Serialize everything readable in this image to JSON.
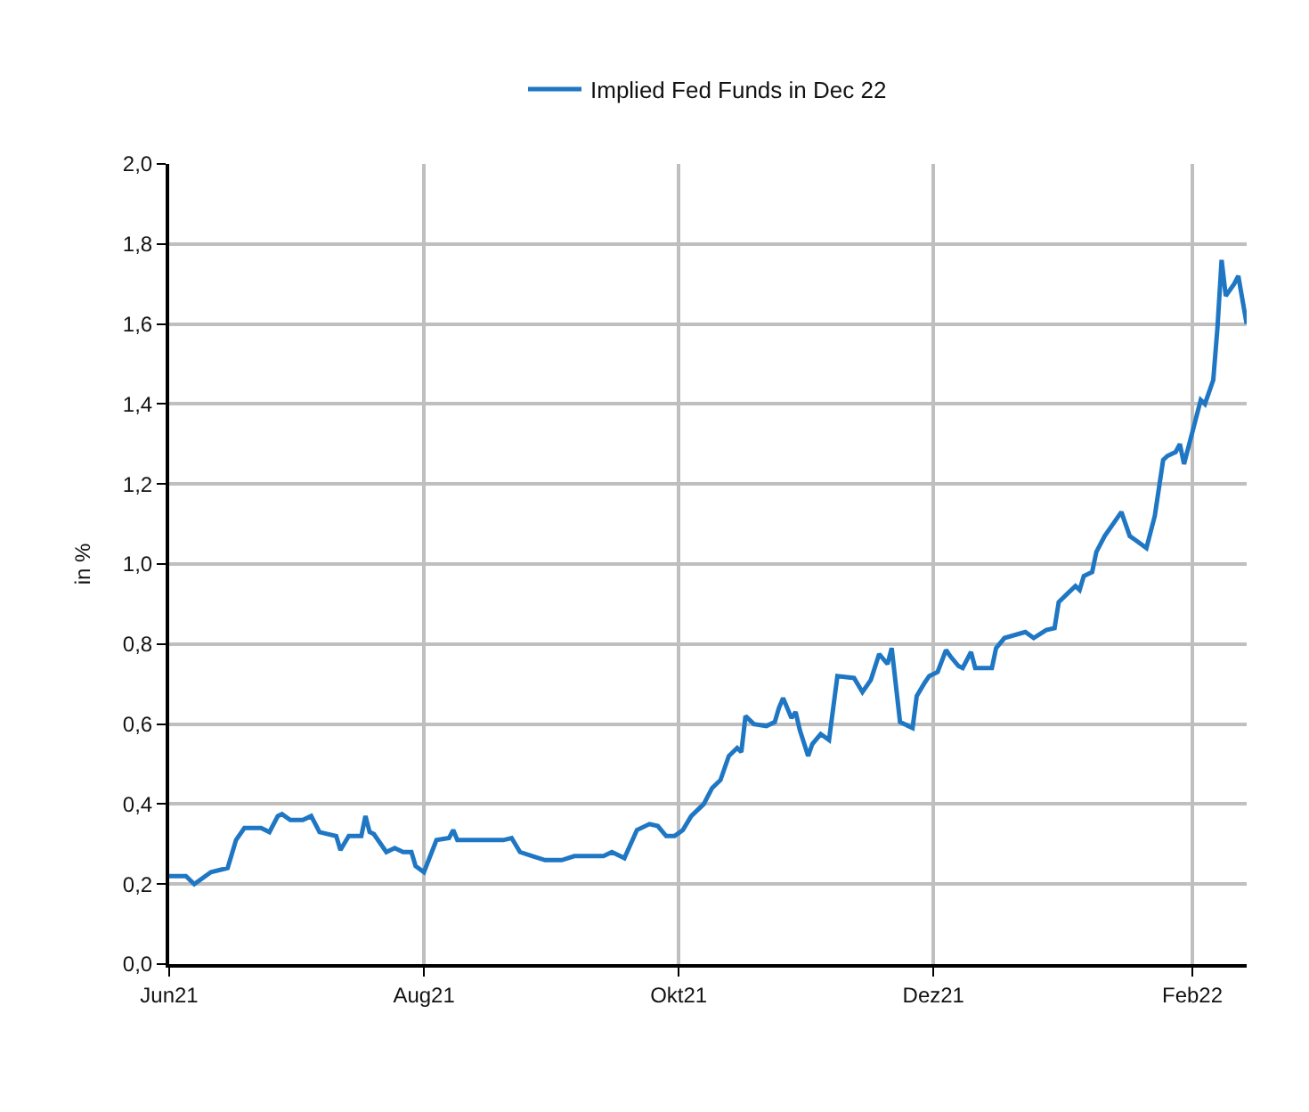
{
  "chart_data": {
    "type": "line",
    "ylabel": "in %",
    "legend": "top",
    "grid": true,
    "xlim": [
      "2021-06-01",
      "2022-02-14"
    ],
    "xticks": [
      {
        "value": "2021-06-01",
        "label": "Jun21"
      },
      {
        "value": "2021-08-01",
        "label": "Aug21"
      },
      {
        "value": "2021-10-01",
        "label": "Okt21"
      },
      {
        "value": "2021-12-01",
        "label": "Dez21"
      },
      {
        "value": "2022-02-01",
        "label": "Feb22"
      }
    ],
    "ylim": [
      0,
      2
    ],
    "yticks": [
      {
        "value": 0,
        "label": "0,0"
      },
      {
        "value": 0.2,
        "label": "0,2"
      },
      {
        "value": 0.4,
        "label": "0,4"
      },
      {
        "value": 0.6,
        "label": "0,6"
      },
      {
        "value": 0.8,
        "label": "0,8"
      },
      {
        "value": 1.0,
        "label": "1,0"
      },
      {
        "value": 1.2,
        "label": "1,2"
      },
      {
        "value": 1.4,
        "label": "1,4"
      },
      {
        "value": 1.6,
        "label": "1,6"
      },
      {
        "value": 1.8,
        "label": "1,8"
      },
      {
        "value": 2.0,
        "label": "2,0"
      }
    ],
    "series": [
      {
        "name": "Implied Fed Funds in Dec 22",
        "color": "#1f77c4",
        "x": [
          "2021-06-01",
          "2021-06-05",
          "2021-06-07",
          "2021-06-11",
          "2021-06-15",
          "2021-06-17",
          "2021-06-19",
          "2021-06-23",
          "2021-06-25",
          "2021-06-27",
          "2021-06-28",
          "2021-06-30",
          "2021-07-03",
          "2021-07-05",
          "2021-07-07",
          "2021-07-11",
          "2021-07-12",
          "2021-07-14",
          "2021-07-17",
          "2021-07-18",
          "2021-07-19",
          "2021-07-20",
          "2021-07-23",
          "2021-07-25",
          "2021-07-27",
          "2021-07-29",
          "2021-07-30",
          "2021-08-01",
          "2021-08-04",
          "2021-08-07",
          "2021-08-08",
          "2021-08-09",
          "2021-08-15",
          "2021-08-20",
          "2021-08-22",
          "2021-08-24",
          "2021-08-27",
          "2021-08-30",
          "2021-09-03",
          "2021-09-06",
          "2021-09-13",
          "2021-09-15",
          "2021-09-18",
          "2021-09-21",
          "2021-09-24",
          "2021-09-26",
          "2021-09-28",
          "2021-09-30",
          "2021-10-02",
          "2021-10-04",
          "2021-10-07",
          "2021-10-09",
          "2021-10-11",
          "2021-10-13",
          "2021-10-15",
          "2021-10-16",
          "2021-10-17",
          "2021-10-19",
          "2021-10-22",
          "2021-10-24",
          "2021-10-25",
          "2021-10-26",
          "2021-10-28",
          "2021-10-29",
          "2021-10-30",
          "2021-11-01",
          "2021-11-02",
          "2021-11-04",
          "2021-11-06",
          "2021-11-08",
          "2021-11-12",
          "2021-11-14",
          "2021-11-16",
          "2021-11-18",
          "2021-11-20",
          "2021-11-21",
          "2021-11-23",
          "2021-11-26",
          "2021-11-27",
          "2021-11-29",
          "2021-11-30",
          "2021-12-02",
          "2021-12-04",
          "2021-12-05",
          "2021-12-07",
          "2021-12-08",
          "2021-12-10",
          "2021-12-11",
          "2021-12-15",
          "2021-12-16",
          "2021-12-18",
          "2021-12-23",
          "2021-12-25",
          "2021-12-28",
          "2021-12-30",
          "2021-12-31",
          "2022-01-02",
          "2022-01-04",
          "2022-01-05",
          "2022-01-06",
          "2022-01-08",
          "2022-01-09",
          "2022-01-11",
          "2022-01-13",
          "2022-01-15",
          "2022-01-16",
          "2022-01-17",
          "2022-01-21",
          "2022-01-23",
          "2022-01-25",
          "2022-01-26",
          "2022-01-28",
          "2022-01-29",
          "2022-01-30",
          "2022-02-01",
          "2022-02-03",
          "2022-02-04",
          "2022-02-06",
          "2022-02-07",
          "2022-02-08",
          "2022-02-09",
          "2022-02-11",
          "2022-02-12",
          "2022-02-14"
        ],
        "values": [
          0.22,
          0.22,
          0.2,
          0.23,
          0.24,
          0.31,
          0.34,
          0.34,
          0.33,
          0.37,
          0.375,
          0.36,
          0.36,
          0.37,
          0.33,
          0.32,
          0.285,
          0.32,
          0.32,
          0.37,
          0.33,
          0.325,
          0.28,
          0.29,
          0.28,
          0.28,
          0.245,
          0.23,
          0.31,
          0.315,
          0.335,
          0.31,
          0.31,
          0.31,
          0.315,
          0.28,
          0.27,
          0.26,
          0.26,
          0.27,
          0.27,
          0.28,
          0.265,
          0.335,
          0.35,
          0.345,
          0.32,
          0.32,
          0.335,
          0.37,
          0.4,
          0.44,
          0.46,
          0.52,
          0.54,
          0.53,
          0.62,
          0.6,
          0.595,
          0.605,
          0.64,
          0.665,
          0.615,
          0.63,
          0.585,
          0.52,
          0.55,
          0.575,
          0.56,
          0.72,
          0.715,
          0.68,
          0.71,
          0.775,
          0.75,
          0.79,
          0.605,
          0.59,
          0.67,
          0.705,
          0.72,
          0.73,
          0.785,
          0.77,
          0.745,
          0.74,
          0.78,
          0.74,
          0.74,
          0.79,
          0.815,
          0.83,
          0.815,
          0.835,
          0.84,
          0.905,
          0.925,
          0.945,
          0.935,
          0.97,
          0.98,
          1.03,
          1.07,
          1.1,
          1.13,
          1.1,
          1.07,
          1.04,
          1.12,
          1.26,
          1.27,
          1.28,
          1.3,
          1.25,
          1.33,
          1.41,
          1.4,
          1.46,
          1.59,
          1.76,
          1.67,
          1.7,
          1.72,
          1.6
        ]
      }
    ]
  }
}
